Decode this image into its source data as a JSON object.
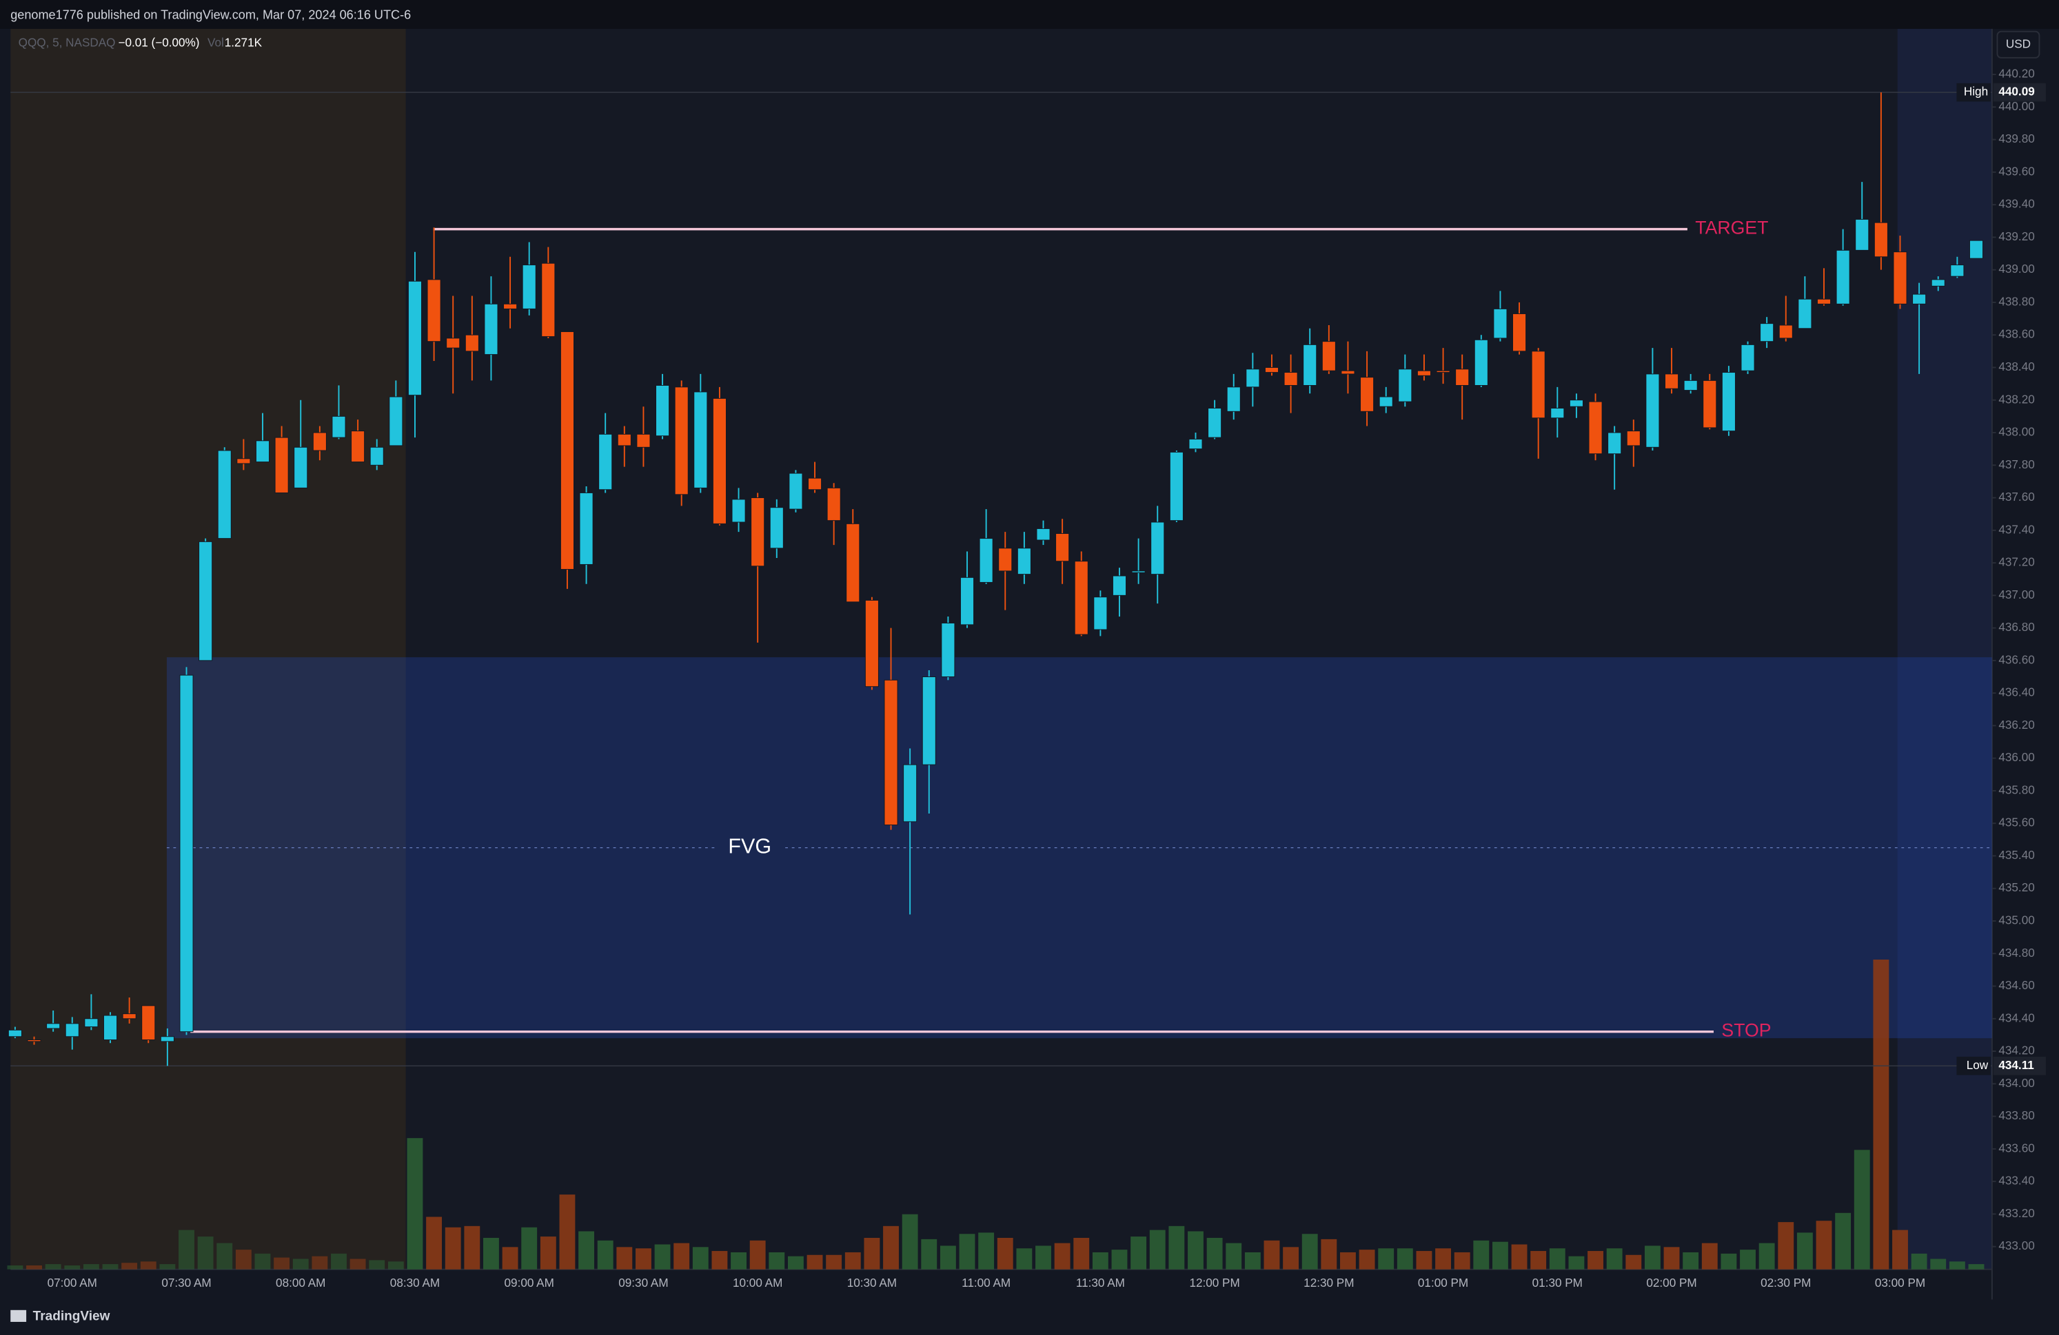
{
  "attribution": "genome1776 published on TradingView.com, Mar 07, 2024 06:16 UTC-6",
  "footer": "TradingView",
  "currency": "USD",
  "chart_data": {
    "type": "candlestick",
    "legend": {
      "symbol": "QQQ, 5, NASDAQ",
      "change": "−0.01 (−0.00%)",
      "volume_label": "Vol",
      "volume_value": "1.271K"
    },
    "categories": [
      null,
      null,
      null,
      "07:00 AM",
      null,
      null,
      null,
      null,
      null,
      "07:30 AM",
      null,
      null,
      null,
      null,
      null,
      "08:00 AM",
      null,
      null,
      null,
      null,
      null,
      "08:30 AM",
      null,
      null,
      null,
      null,
      null,
      "09:00 AM",
      null,
      null,
      null,
      null,
      null,
      "09:30 AM",
      null,
      null,
      null,
      null,
      null,
      "10:00 AM",
      null,
      null,
      null,
      null,
      null,
      "10:30 AM",
      null,
      null,
      null,
      null,
      null,
      "11:00 AM",
      null,
      null,
      null,
      null,
      null,
      "11:30 AM",
      null,
      null,
      null,
      null,
      null,
      "12:00 PM",
      null,
      null,
      null,
      null,
      null,
      "12:30 PM",
      null,
      null,
      null,
      null,
      null,
      "01:00 PM",
      null,
      null,
      null,
      null,
      null,
      "01:30 PM",
      null,
      null,
      null,
      null,
      null,
      "02:00 PM",
      null,
      null,
      null,
      null,
      null,
      "02:30 PM",
      null,
      null,
      null,
      null,
      null,
      "03:00 PM",
      null,
      null,
      null,
      null
    ],
    "open": [
      434.29,
      434.27,
      434.34,
      434.29,
      434.35,
      434.27,
      434.43,
      434.48,
      434.26,
      434.32,
      436.6,
      437.35,
      437.84,
      437.82,
      437.97,
      437.66,
      438.0,
      437.97,
      438.01,
      437.8,
      437.92,
      438.23,
      438.94,
      438.58,
      438.6,
      438.48,
      438.79,
      438.76,
      439.04,
      438.62,
      437.19,
      437.65,
      437.99,
      437.99,
      437.98,
      438.28,
      437.66,
      438.21,
      437.45,
      437.6,
      437.29,
      437.53,
      437.72,
      437.66,
      437.44,
      436.97,
      436.48,
      435.61,
      435.96,
      436.5,
      436.82,
      437.08,
      437.29,
      437.13,
      437.34,
      437.38,
      437.21,
      436.79,
      437.0,
      437.14,
      437.13,
      437.46,
      437.9,
      437.97,
      438.13,
      438.28,
      438.4,
      438.37,
      438.29,
      438.56,
      438.38,
      438.34,
      438.16,
      438.19,
      438.38,
      438.38,
      438.39,
      438.29,
      438.58,
      438.73,
      438.5,
      438.09,
      438.16,
      438.19,
      437.87,
      438.01,
      437.91,
      438.36,
      438.26,
      438.32,
      438.01,
      438.38,
      438.56,
      438.66,
      438.64,
      438.82,
      438.79,
      439.12,
      439.29,
      439.11,
      438.79,
      438.9,
      438.96,
      439.07
    ],
    "high": [
      434.35,
      434.29,
      434.45,
      434.41,
      434.55,
      434.44,
      434.53,
      434.48,
      434.34,
      436.56,
      437.35,
      437.91,
      437.96,
      438.12,
      438.04,
      438.2,
      438.04,
      438.29,
      438.08,
      437.96,
      438.32,
      439.11,
      439.26,
      438.84,
      438.84,
      438.96,
      439.08,
      439.17,
      439.14,
      438.62,
      437.67,
      438.12,
      438.04,
      438.16,
      438.36,
      438.32,
      438.36,
      438.28,
      437.66,
      437.63,
      437.59,
      437.77,
      437.82,
      437.69,
      437.53,
      436.99,
      436.8,
      436.06,
      436.54,
      436.87,
      437.27,
      437.53,
      437.39,
      437.39,
      437.46,
      437.47,
      437.27,
      437.03,
      437.17,
      437.35,
      437.55,
      437.89,
      438.0,
      438.2,
      438.36,
      438.49,
      438.48,
      438.48,
      438.64,
      438.66,
      438.56,
      438.5,
      438.28,
      438.48,
      438.48,
      438.52,
      438.48,
      438.6,
      438.87,
      438.8,
      438.52,
      438.28,
      438.24,
      438.24,
      438.04,
      438.08,
      438.52,
      438.52,
      438.36,
      438.36,
      438.41,
      438.56,
      438.71,
      438.84,
      438.96,
      439.01,
      439.25,
      439.54,
      440.09,
      439.21,
      438.92,
      438.96,
      439.08,
      439.18
    ],
    "low": [
      434.28,
      434.24,
      434.32,
      434.21,
      434.33,
      434.25,
      434.37,
      434.25,
      434.11,
      434.3,
      436.6,
      437.35,
      437.77,
      437.82,
      437.63,
      437.66,
      437.83,
      437.96,
      437.82,
      437.77,
      437.92,
      437.97,
      438.44,
      438.24,
      438.32,
      438.32,
      438.64,
      438.72,
      438.58,
      437.04,
      437.07,
      437.63,
      437.79,
      437.79,
      437.96,
      437.55,
      437.63,
      437.43,
      437.39,
      436.71,
      437.23,
      437.51,
      437.63,
      437.31,
      436.96,
      436.42,
      435.56,
      435.04,
      435.66,
      436.48,
      436.8,
      437.07,
      436.91,
      437.07,
      437.31,
      437.07,
      436.75,
      436.75,
      436.87,
      437.07,
      436.95,
      437.45,
      437.88,
      437.96,
      438.08,
      438.16,
      438.35,
      438.12,
      438.24,
      438.36,
      438.24,
      438.04,
      438.12,
      438.16,
      438.32,
      438.3,
      438.08,
      438.28,
      438.56,
      438.48,
      437.84,
      437.97,
      438.09,
      437.83,
      437.65,
      437.79,
      437.89,
      438.24,
      438.24,
      438.02,
      437.98,
      438.36,
      438.52,
      438.56,
      438.64,
      438.78,
      438.78,
      439.12,
      439.0,
      438.76,
      438.36,
      438.87,
      438.95,
      439.07
    ],
    "close": [
      434.33,
      434.26,
      434.37,
      434.37,
      434.4,
      434.42,
      434.4,
      434.27,
      434.29,
      436.51,
      437.33,
      437.89,
      437.81,
      437.95,
      437.63,
      437.91,
      437.89,
      438.1,
      437.82,
      437.91,
      438.22,
      438.93,
      438.56,
      438.52,
      438.5,
      438.79,
      438.76,
      439.03,
      438.59,
      437.16,
      437.63,
      437.99,
      437.92,
      437.91,
      438.29,
      437.62,
      438.25,
      437.44,
      437.59,
      437.18,
      437.54,
      437.75,
      437.65,
      437.46,
      436.96,
      436.44,
      435.59,
      435.96,
      436.5,
      436.83,
      437.11,
      437.35,
      437.15,
      437.29,
      437.41,
      437.21,
      436.76,
      436.99,
      437.12,
      437.15,
      437.45,
      437.88,
      437.96,
      438.15,
      438.28,
      438.39,
      438.37,
      438.29,
      438.54,
      438.38,
      438.36,
      438.13,
      438.22,
      438.39,
      438.35,
      438.37,
      438.29,
      438.57,
      438.76,
      438.5,
      438.09,
      438.15,
      438.2,
      437.87,
      438.0,
      437.92,
      438.36,
      438.27,
      438.32,
      438.03,
      438.37,
      438.54,
      438.67,
      438.58,
      438.82,
      438.79,
      439.12,
      439.31,
      439.08,
      438.79,
      438.85,
      438.94,
      439.03,
      439.18
    ],
    "volume": [
      3,
      3,
      4,
      3,
      4,
      4,
      5,
      6,
      4,
      30,
      25,
      20,
      15,
      12,
      9,
      8,
      10,
      12,
      8,
      7,
      6,
      100,
      40,
      32,
      33,
      24,
      17,
      32,
      25,
      57,
      29,
      22,
      17,
      16,
      19,
      20,
      17,
      14,
      13,
      22,
      13,
      10,
      11,
      11,
      13,
      24,
      33,
      42,
      23,
      18,
      27,
      28,
      24,
      16,
      18,
      20,
      24,
      13,
      15,
      25,
      30,
      33,
      29,
      24,
      20,
      13,
      22,
      17,
      27,
      23,
      13,
      15,
      16,
      16,
      14,
      16,
      13,
      22,
      21,
      19,
      14,
      16,
      10,
      14,
      16,
      11,
      18,
      17,
      13,
      20,
      12,
      15,
      20,
      36,
      28,
      37,
      43,
      91,
      236,
      30,
      12,
      8,
      6,
      4
    ],
    "up_color": "#22c3dd",
    "down_color": "#f0520f",
    "up_volume_color": "#2b5e34",
    "down_volume_color": "#8a3a16",
    "ylim": [
      432.86,
      440.48
    ],
    "yticks": [
      {
        "value": 433,
        "label": "433.00"
      },
      {
        "value": 433.2,
        "label": "433.20"
      },
      {
        "value": 433.4,
        "label": "433.40"
      },
      {
        "value": 433.6,
        "label": "433.60"
      },
      {
        "value": 433.8,
        "label": "433.80"
      },
      {
        "value": 434,
        "label": "434.00"
      },
      {
        "value": 434.2,
        "label": "434.20"
      },
      {
        "value": 434.4,
        "label": "434.40"
      },
      {
        "value": 434.6,
        "label": "434.60"
      },
      {
        "value": 434.8,
        "label": "434.80"
      },
      {
        "value": 435,
        "label": "435.00"
      },
      {
        "value": 435.2,
        "label": "435.20"
      },
      {
        "value": 435.4,
        "label": "435.40"
      },
      {
        "value": 435.6,
        "label": "435.60"
      },
      {
        "value": 435.8,
        "label": "435.80"
      },
      {
        "value": 436,
        "label": "436.00"
      },
      {
        "value": 436.2,
        "label": "436.20"
      },
      {
        "value": 436.4,
        "label": "436.40"
      },
      {
        "value": 436.6,
        "label": "436.60"
      },
      {
        "value": 436.8,
        "label": "436.80"
      },
      {
        "value": 437,
        "label": "437.00"
      },
      {
        "value": 437.2,
        "label": "437.20"
      },
      {
        "value": 437.4,
        "label": "437.40"
      },
      {
        "value": 437.6,
        "label": "437.60"
      },
      {
        "value": 437.8,
        "label": "437.80"
      },
      {
        "value": 438,
        "label": "438.00"
      },
      {
        "value": 438.2,
        "label": "438.20"
      },
      {
        "value": 438.4,
        "label": "438.40"
      },
      {
        "value": 438.6,
        "label": "438.60"
      },
      {
        "value": 438.8,
        "label": "438.80"
      },
      {
        "value": 439,
        "label": "439.00"
      },
      {
        "value": 439.2,
        "label": "439.20"
      },
      {
        "value": 439.4,
        "label": "439.40"
      },
      {
        "value": 439.6,
        "label": "439.60"
      },
      {
        "value": 439.8,
        "label": "439.80"
      },
      {
        "value": 440,
        "label": "440.00"
      },
      {
        "value": 440.2,
        "label": "440.20"
      }
    ],
    "grid": false,
    "high_marker": {
      "label": "High",
      "value": 440.09
    },
    "low_marker": {
      "label": "Low",
      "value": 434.11
    },
    "annotations": {
      "target": {
        "label": "TARGET",
        "value": 439.25
      },
      "stop": {
        "label": "STOP",
        "value": 434.32
      },
      "fvg": {
        "label": "FVG",
        "top": 436.62,
        "bottom": 434.28
      }
    }
  }
}
